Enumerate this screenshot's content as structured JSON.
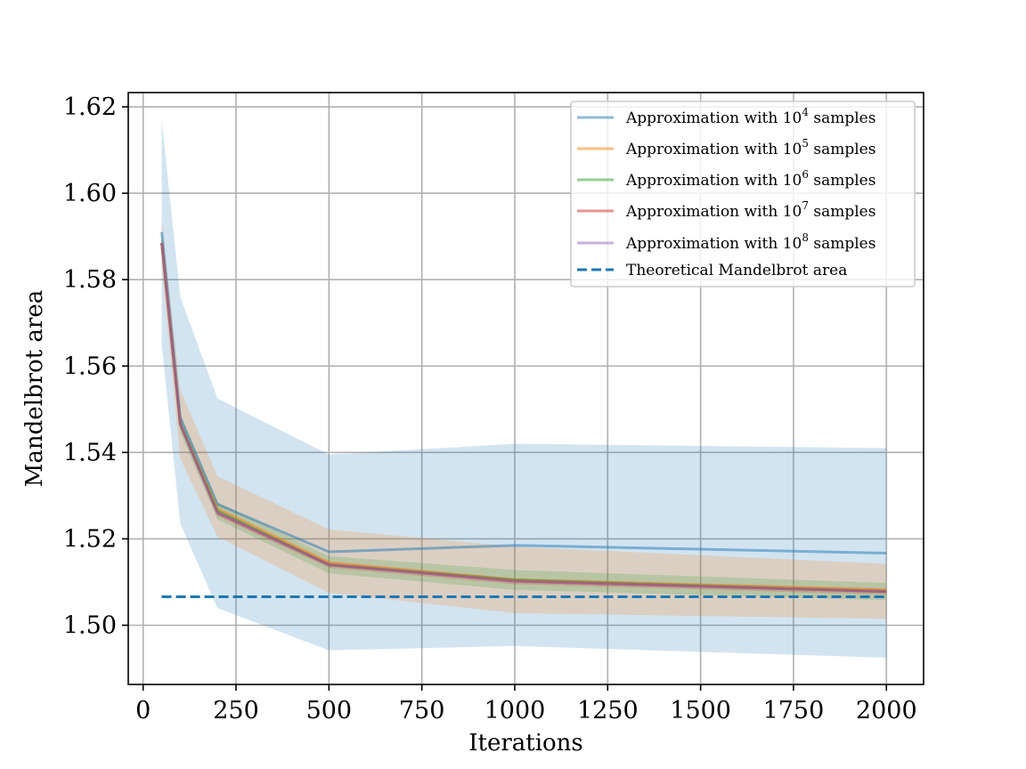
{
  "chart_data": {
    "type": "line",
    "xlabel": "Iterations",
    "ylabel": "Mandelbrot area",
    "xlim": [
      -40,
      2100
    ],
    "ylim": [
      1.4863,
      1.6233
    ],
    "xticks": [
      0,
      250,
      500,
      750,
      1000,
      1250,
      1500,
      1750,
      2000
    ],
    "xtick_labels": [
      "0",
      "250",
      "500",
      "750",
      "1000",
      "1250",
      "1500",
      "1750",
      "2000"
    ],
    "yticks": [
      1.5,
      1.52,
      1.54,
      1.56,
      1.58,
      1.6,
      1.62
    ],
    "ytick_labels": [
      "1.50",
      "1.52",
      "1.54",
      "1.56",
      "1.58",
      "1.60",
      "1.62"
    ],
    "grid": true,
    "legend_position": "top-right",
    "x": [
      50,
      100,
      200,
      500,
      1000,
      2000
    ],
    "series": [
      {
        "name": "Approximation with 10^4 samples",
        "legend_base": "Approximation with 10",
        "legend_exp": "4",
        "legend_tail": " samples",
        "color": "#1f77b4",
        "values": [
          1.591,
          1.548,
          1.528,
          1.517,
          1.5185,
          1.5167
        ],
        "band_upper": [
          1.617,
          1.576,
          1.5525,
          1.5395,
          1.542,
          1.541
        ],
        "band_lower": [
          1.565,
          1.5235,
          1.504,
          1.4942,
          1.4952,
          1.4925
        ]
      },
      {
        "name": "Approximation with 10^5 samples",
        "legend_base": "Approximation with 10",
        "legend_exp": "5",
        "legend_tail": " samples",
        "color": "#ff7f0e",
        "values": [
          1.5885,
          1.5465,
          1.527,
          1.5145,
          1.5105,
          1.5082
        ],
        "band_upper": [
          1.594,
          1.5545,
          1.5345,
          1.5222,
          1.5182,
          1.5142
        ],
        "band_lower": [
          1.583,
          1.5385,
          1.5205,
          1.5075,
          1.5028,
          1.5015
        ]
      },
      {
        "name": "Approximation with 10^6 samples",
        "legend_base": "Approximation with 10",
        "legend_exp": "6",
        "legend_tail": " samples",
        "color": "#2ca02c",
        "values": [
          1.5885,
          1.5465,
          1.5265,
          1.514,
          1.5105,
          1.5078
        ],
        "band_upper": [
          1.5905,
          1.549,
          1.5285,
          1.516,
          1.5128,
          1.5098
        ],
        "band_lower": [
          1.5865,
          1.5445,
          1.5245,
          1.512,
          1.5082,
          1.5058
        ]
      },
      {
        "name": "Approximation with 10^7 samples",
        "legend_base": "Approximation with 10",
        "legend_exp": "7",
        "legend_tail": " samples",
        "color": "#d62728",
        "values": [
          1.5885,
          1.5465,
          1.526,
          1.514,
          1.5102,
          1.5078
        ],
        "band_upper": [
          1.5892,
          1.5472,
          1.5267,
          1.5147,
          1.5109,
          1.5085
        ],
        "band_lower": [
          1.5878,
          1.5458,
          1.5253,
          1.5133,
          1.5095,
          1.5071
        ]
      },
      {
        "name": "Approximation with 10^8 samples",
        "legend_base": "Approximation with 10",
        "legend_exp": "8",
        "legend_tail": " samples",
        "color": "#9467bd",
        "values": [
          1.5885,
          1.5465,
          1.526,
          1.514,
          1.5102,
          1.5078
        ],
        "band_upper": [
          1.5887,
          1.5467,
          1.5262,
          1.5142,
          1.5104,
          1.508
        ],
        "band_lower": [
          1.5883,
          1.5463,
          1.5258,
          1.5138,
          1.51,
          1.5076
        ]
      }
    ],
    "reference": {
      "name": "Theoretical Mandelbrot area",
      "color": "#1f77b4",
      "style": "dashed",
      "value": 1.5066,
      "x": [
        50,
        2000
      ]
    }
  }
}
